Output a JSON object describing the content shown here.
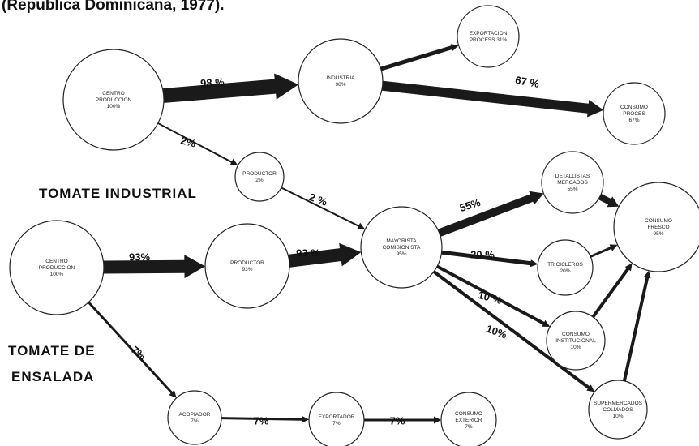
{
  "caption": "(Republica Dominicana, 1977).",
  "labels": {
    "industrial": "TOMATE INDUSTRIAL",
    "salad_1": "TOMATE DE",
    "salad_2": "ENSALADA"
  },
  "nodes": [
    {
      "lines": [
        "CENTRO",
        "PRODUCCION",
        "100%"
      ]
    },
    {
      "lines": [
        "INDUSTRIA",
        "98%"
      ]
    },
    {
      "lines": [
        "EXPORTACION",
        "PROCESS 31%"
      ]
    },
    {
      "lines": [
        "CONSUMO",
        "PROCES",
        "67%"
      ]
    },
    {
      "lines": [
        "PRODUCTOR",
        "2%"
      ]
    },
    {
      "lines": [
        "CENTRO",
        "PRODUCCION",
        "100%"
      ]
    },
    {
      "lines": [
        "PRODUCTOR",
        "93%"
      ]
    },
    {
      "lines": [
        "MAYORISTA",
        "COMISIONISTA",
        "95%"
      ]
    },
    {
      "lines": [
        "DETALLISTAS",
        "MERCADOS",
        "55%"
      ]
    },
    {
      "lines": [
        "TRICICLEROS",
        "20%"
      ]
    },
    {
      "lines": [
        "CONSUMO",
        "INSTITUCIONAL",
        "10%"
      ]
    },
    {
      "lines": [
        "SUPERMERCADOS",
        "COLMADOS",
        "10%"
      ]
    },
    {
      "lines": [
        "CONSUMO",
        "FRESCO",
        "95%"
      ]
    },
    {
      "lines": [
        "ACOPIADOR",
        "7%"
      ]
    },
    {
      "lines": [
        "EXPORTADOR",
        "7%"
      ]
    },
    {
      "lines": [
        "CONSUMO",
        "EXTERIOR",
        "7%"
      ]
    }
  ],
  "edges": [
    {
      "label": "98 %"
    },
    {
      "label": "67 %"
    },
    {
      "label": "2%"
    },
    {
      "label": "2 %"
    },
    {
      "label": "93%"
    },
    {
      "label": "93 %"
    },
    {
      "label": "55%"
    },
    {
      "label": "20 %"
    },
    {
      "label": "10 %"
    },
    {
      "label": "10%"
    },
    {
      "label": "7%"
    },
    {
      "label": "7%"
    },
    {
      "label": "7%"
    }
  ]
}
